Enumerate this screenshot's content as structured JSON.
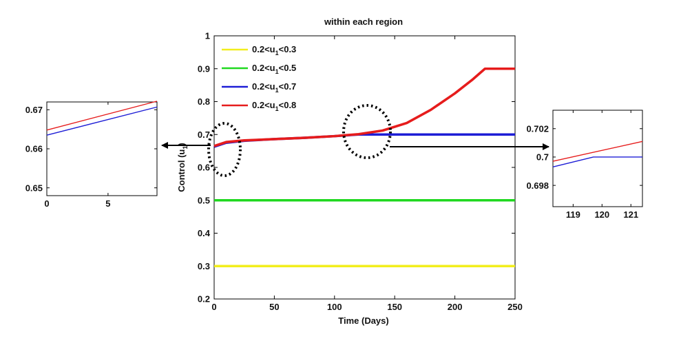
{
  "chart_data": [
    {
      "id": "main",
      "type": "line",
      "title": "within each region",
      "xlabel": "Time (Days)",
      "ylabel_base": "Control (u",
      "ylabel_sub": "1",
      "ylabel_tail": ")",
      "xlim": [
        0,
        250
      ],
      "ylim": [
        0.2,
        1.0
      ],
      "xticks": [
        0,
        50,
        100,
        150,
        200,
        250
      ],
      "yticks": [
        0.2,
        0.3,
        0.4,
        0.5,
        0.6,
        0.7,
        0.8,
        0.9,
        1
      ],
      "ytick_labels": [
        "0.2",
        "0.3",
        "0.4",
        "0.5",
        "0.6",
        "0.7",
        "0.8",
        "0.9",
        "1"
      ],
      "grid": false,
      "legend_position": "top-left",
      "series": [
        {
          "name": "0.2<u1<0.3",
          "legend_pre": "0.2<u",
          "legend_sub": "1",
          "legend_post": "<0.3",
          "color": "#f2ee1c",
          "x": [
            0,
            250
          ],
          "y": [
            0.3,
            0.3
          ]
        },
        {
          "name": "0.2<u1<0.5",
          "legend_pre": "0.2<u",
          "legend_sub": "1",
          "legend_post": "<0.5",
          "color": "#1fd81f",
          "x": [
            0,
            250
          ],
          "y": [
            0.5,
            0.5
          ]
        },
        {
          "name": "0.2<u1<0.7",
          "legend_pre": "0.2<u",
          "legend_sub": "1",
          "legend_post": "<0.7",
          "color": "#1d1dd6",
          "x": [
            0,
            10,
            25,
            50,
            75,
            100,
            120,
            130,
            250
          ],
          "y": [
            0.663,
            0.675,
            0.681,
            0.686,
            0.69,
            0.695,
            0.7,
            0.7,
            0.7
          ]
        },
        {
          "name": "0.2<u1<0.8",
          "legend_pre": "0.2<u",
          "legend_sub": "1",
          "legend_post": "<0.8",
          "color": "#e61c1c",
          "x": [
            0,
            10,
            25,
            50,
            75,
            100,
            120,
            140,
            160,
            180,
            200,
            215,
            225,
            250
          ],
          "y": [
            0.665,
            0.677,
            0.682,
            0.686,
            0.69,
            0.695,
            0.701,
            0.712,
            0.735,
            0.775,
            0.825,
            0.868,
            0.9,
            0.9
          ]
        }
      ]
    },
    {
      "id": "inset-left",
      "type": "line",
      "title": "",
      "xlim": [
        0,
        9
      ],
      "ylim": [
        0.648,
        0.672
      ],
      "xticks": [
        0,
        5
      ],
      "xtick_labels": [
        "0",
        "5"
      ],
      "yticks": [
        0.65,
        0.66,
        0.67
      ],
      "ytick_labels": [
        "0.65",
        "0.66",
        "0.67"
      ],
      "series": [
        {
          "color": "#1d1dd6",
          "x": [
            0,
            9
          ],
          "y": [
            0.6635,
            0.6707
          ]
        },
        {
          "color": "#e61c1c",
          "x": [
            0,
            9
          ],
          "y": [
            0.6648,
            0.6722
          ]
        }
      ]
    },
    {
      "id": "inset-right",
      "type": "line",
      "title": "",
      "xlim": [
        118.3,
        121.4
      ],
      "ylim": [
        0.6965,
        0.7033
      ],
      "xticks": [
        119,
        120,
        121
      ],
      "xtick_labels": [
        "119",
        "120",
        "121"
      ],
      "yticks": [
        0.698,
        0.7,
        0.702
      ],
      "ytick_labels": [
        "0.698",
        "0.7",
        "0.702"
      ],
      "series": [
        {
          "color": "#1d1dd6",
          "x": [
            118.3,
            119.7,
            121.4
          ],
          "y": [
            0.6993,
            0.7,
            0.7
          ]
        },
        {
          "color": "#e61c1c",
          "x": [
            118.3,
            121.4
          ],
          "y": [
            0.6997,
            0.7011
          ]
        }
      ]
    }
  ]
}
